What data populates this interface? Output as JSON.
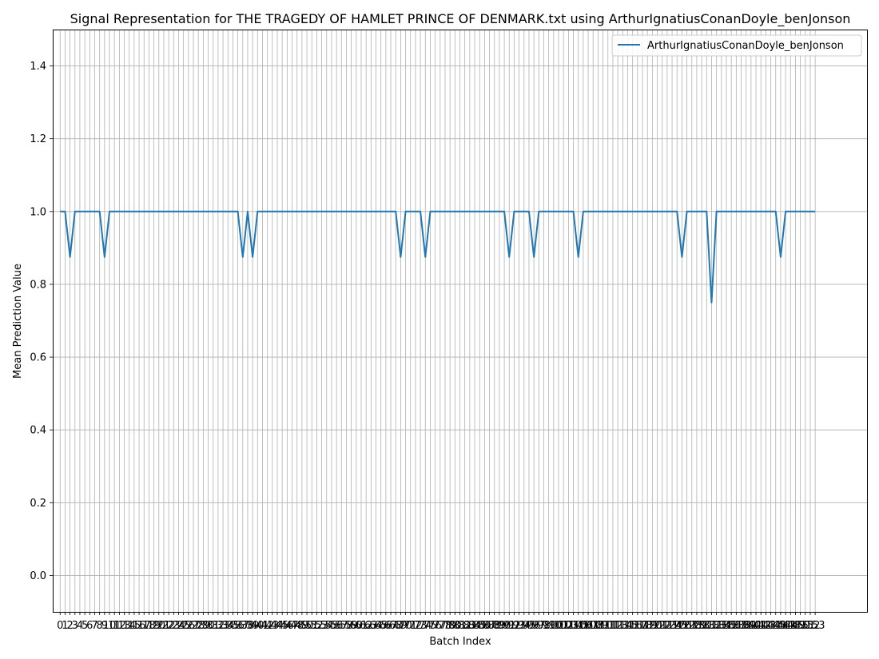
{
  "chart_data": {
    "type": "line",
    "title": "Signal Representation for THE TRAGEDY OF HAMLET PRINCE OF DENMARK.txt using ArthurIgnatiusConanDoyle_benJonson",
    "xlabel": "Batch Index",
    "ylabel": "Mean Prediction Value",
    "xlim": [
      -1.5,
      163.5
    ],
    "ylim": [
      -0.1,
      1.5
    ],
    "yticks": [
      0.0,
      0.2,
      0.4,
      0.6,
      0.8,
      1.0,
      1.2,
      1.4
    ],
    "ytick_labels": [
      "0.0",
      "0.2",
      "0.4",
      "0.6",
      "0.8",
      "1.0",
      "1.2",
      "1.4"
    ],
    "x_tick_count": 154,
    "grid": true,
    "legend_position": "upper right",
    "series": [
      {
        "name": "ArthurIgnatiusConanDoyle_benJonson",
        "color": "#1f77b4",
        "dips": [
          [
            2,
            0.875
          ],
          [
            9,
            0.875
          ],
          [
            37,
            0.875
          ],
          [
            39,
            0.875
          ],
          [
            69,
            0.875
          ],
          [
            74,
            0.875
          ],
          [
            91,
            0.875
          ],
          [
            96,
            0.875
          ],
          [
            105,
            0.875
          ],
          [
            126,
            0.875
          ],
          [
            132,
            0.75
          ],
          [
            146,
            0.875
          ]
        ],
        "peaks": [
          [
            38,
            1.0
          ]
        ],
        "default_value": 1.0
      }
    ]
  }
}
